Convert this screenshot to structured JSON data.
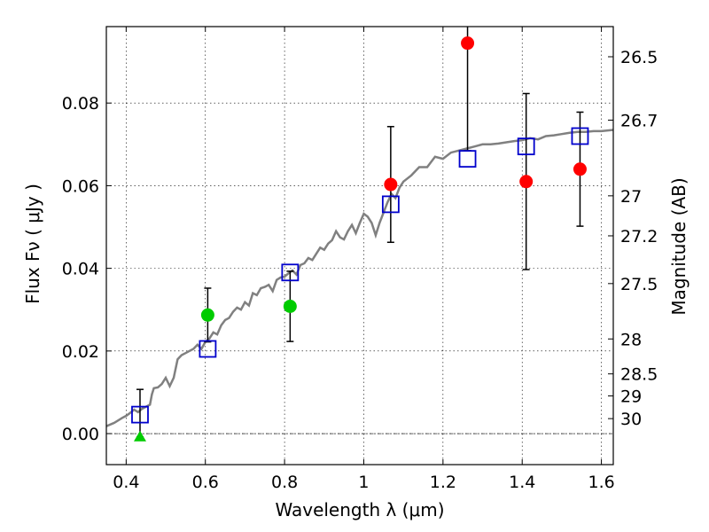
{
  "chart_data": {
    "type": "scatter",
    "xlabel": "Wavelength  λ (μm)",
    "ylabel": "Flux  Fν  ( μJy )",
    "ylabel_right": "Magnitude (AB)",
    "xlim": [
      0.35,
      1.63
    ],
    "ylim": [
      -0.0075,
      0.0985
    ],
    "grid": true,
    "x_ticks": [
      {
        "value": 0.4,
        "label": "0.4"
      },
      {
        "value": 0.6,
        "label": "0.6"
      },
      {
        "value": 0.8,
        "label": "0.8"
      },
      {
        "value": 1.0,
        "label": "1"
      },
      {
        "value": 1.2,
        "label": "1.2"
      },
      {
        "value": 1.4,
        "label": "1.4"
      },
      {
        "value": 1.6,
        "label": "1.6"
      }
    ],
    "y_ticks": [
      {
        "value": 0.0,
        "label": "0.00"
      },
      {
        "value": 0.02,
        "label": "0.02"
      },
      {
        "value": 0.04,
        "label": "0.04"
      },
      {
        "value": 0.06,
        "label": "0.06"
      },
      {
        "value": 0.08,
        "label": "0.08"
      }
    ],
    "right_ticks": [
      {
        "mag": 26.5,
        "label": "26.5"
      },
      {
        "mag": 26.7,
        "label": "26.7"
      },
      {
        "mag": 27.0,
        "label": "27"
      },
      {
        "mag": 27.2,
        "label": "27.2"
      },
      {
        "mag": 27.5,
        "label": "27.5"
      },
      {
        "mag": 28.0,
        "label": "28"
      },
      {
        "mag": 28.5,
        "label": "28.5"
      },
      {
        "mag": 29.0,
        "label": "29"
      },
      {
        "mag": 30.0,
        "label": "30"
      }
    ],
    "sed_model": {
      "color": "#808080",
      "x": [
        0.35,
        0.37,
        0.39,
        0.4,
        0.41,
        0.42,
        0.43,
        0.44,
        0.45,
        0.46,
        0.465,
        0.47,
        0.48,
        0.49,
        0.5,
        0.51,
        0.52,
        0.53,
        0.54,
        0.55,
        0.56,
        0.57,
        0.58,
        0.59,
        0.6,
        0.61,
        0.62,
        0.63,
        0.64,
        0.65,
        0.66,
        0.67,
        0.68,
        0.69,
        0.7,
        0.71,
        0.72,
        0.73,
        0.74,
        0.75,
        0.76,
        0.77,
        0.78,
        0.79,
        0.8,
        0.81,
        0.82,
        0.83,
        0.84,
        0.85,
        0.86,
        0.87,
        0.88,
        0.89,
        0.9,
        0.91,
        0.92,
        0.93,
        0.94,
        0.95,
        0.96,
        0.97,
        0.98,
        0.99,
        1.0,
        1.01,
        1.02,
        1.03,
        1.04,
        1.05,
        1.06,
        1.07,
        1.08,
        1.09,
        1.1,
        1.12,
        1.14,
        1.16,
        1.18,
        1.2,
        1.22,
        1.24,
        1.26,
        1.28,
        1.3,
        1.32,
        1.34,
        1.36,
        1.38,
        1.4,
        1.42,
        1.44,
        1.46,
        1.48,
        1.5,
        1.52,
        1.54,
        1.56,
        1.58,
        1.6,
        1.63
      ],
      "y": [
        0.0018,
        0.0026,
        0.0038,
        0.0043,
        0.005,
        0.0058,
        0.0052,
        0.006,
        0.0065,
        0.007,
        0.0095,
        0.011,
        0.0112,
        0.012,
        0.0135,
        0.0115,
        0.0135,
        0.018,
        0.019,
        0.0195,
        0.02,
        0.0205,
        0.0215,
        0.0205,
        0.0222,
        0.023,
        0.0245,
        0.024,
        0.0262,
        0.0275,
        0.028,
        0.0295,
        0.0305,
        0.03,
        0.0318,
        0.031,
        0.034,
        0.0335,
        0.0352,
        0.0355,
        0.036,
        0.0345,
        0.0372,
        0.0378,
        0.038,
        0.0388,
        0.0395,
        0.0385,
        0.0408,
        0.0412,
        0.0425,
        0.042,
        0.0435,
        0.045,
        0.0445,
        0.046,
        0.0468,
        0.049,
        0.0475,
        0.047,
        0.049,
        0.0505,
        0.0485,
        0.051,
        0.0532,
        0.0525,
        0.051,
        0.048,
        0.051,
        0.0535,
        0.056,
        0.058,
        0.057,
        0.0595,
        0.061,
        0.0625,
        0.0645,
        0.0645,
        0.067,
        0.0665,
        0.068,
        0.0685,
        0.069,
        0.0695,
        0.07,
        0.07,
        0.0702,
        0.0705,
        0.0708,
        0.071,
        0.0715,
        0.0712,
        0.072,
        0.0722,
        0.0725,
        0.0728,
        0.073,
        0.073,
        0.0732,
        0.0732,
        0.0735
      ]
    },
    "series": [
      {
        "marker": "square",
        "color": "#0000cc",
        "points": [
          {
            "x": 0.435,
            "y": 0.0046
          },
          {
            "x": 0.606,
            "y": 0.0205
          },
          {
            "x": 0.814,
            "y": 0.039
          },
          {
            "x": 1.068,
            "y": 0.0555
          },
          {
            "x": 1.262,
            "y": 0.0665
          },
          {
            "x": 1.41,
            "y": 0.0695
          },
          {
            "x": 1.546,
            "y": 0.072
          }
        ]
      },
      {
        "marker": "circle",
        "color": "#00cc00",
        "points": [
          {
            "x": 0.606,
            "y": 0.0287,
            "err": 0.0065
          },
          {
            "x": 0.814,
            "y": 0.0308,
            "err": 0.0085
          }
        ]
      },
      {
        "marker": "triangle",
        "color": "#00cc00",
        "points": [
          {
            "x": 0.435,
            "y": -0.0008,
            "yerr_lo": 0.0,
            "yerr_hi": 0.0115
          }
        ]
      },
      {
        "marker": "circle",
        "color": "#ff0000",
        "points": [
          {
            "x": 1.068,
            "y": 0.0603,
            "err": 0.014
          },
          {
            "x": 1.262,
            "y": 0.0945,
            "err": 0.026
          },
          {
            "x": 1.41,
            "y": 0.061,
            "err": 0.0213
          },
          {
            "x": 1.546,
            "y": 0.064,
            "err": 0.0138
          }
        ]
      }
    ]
  }
}
